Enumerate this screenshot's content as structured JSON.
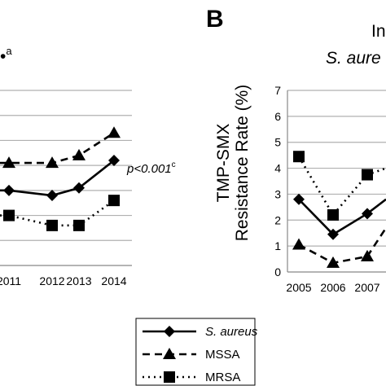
{
  "chart_data": [
    {
      "type": "line",
      "panel": "",
      "x": [
        "2011",
        "2012",
        "2013",
        "2014"
      ],
      "ylim": [
        0,
        7
      ],
      "series": [
        {
          "name": "S. aureus",
          "values": [
            3.0,
            2.8,
            3.1,
            4.2
          ]
        },
        {
          "name": "MSSA",
          "values": [
            4.1,
            4.1,
            4.4,
            5.3
          ]
        },
        {
          "name": "MRSA",
          "values": [
            2.0,
            1.6,
            1.6,
            2.6
          ]
        }
      ],
      "annotations": {
        "top_label": "a",
        "p_text": "p<0.001",
        "p_sup": "c"
      }
    },
    {
      "type": "line",
      "panel": "B",
      "title_line1": "In",
      "title_line2": "S. aure",
      "ylabel_line1": "TMP-SMX",
      "ylabel_line2": "Resistance Rate (%)",
      "x": [
        "2005",
        "2006",
        "2007"
      ],
      "ylim": [
        0,
        7
      ],
      "yticks": [
        "0",
        "1",
        "2",
        "3",
        "4",
        "5",
        "6",
        "7"
      ],
      "series": [
        {
          "name": "S. aureus",
          "values": [
            2.8,
            1.45,
            2.25
          ]
        },
        {
          "name": "MSSA",
          "values": [
            1.05,
            0.35,
            0.6
          ]
        },
        {
          "name": "MRSA",
          "values": [
            4.45,
            2.2,
            3.75
          ]
        }
      ]
    }
  ],
  "legend": {
    "placement": "bottom-center",
    "items": [
      {
        "label": "S. aureus",
        "style": "solid",
        "marker": "diamond",
        "italic": true
      },
      {
        "label": "MSSA",
        "style": "dashed",
        "marker": "triangle",
        "italic": false
      },
      {
        "label": "MRSA",
        "style": "dotted",
        "marker": "square",
        "italic": false
      }
    ]
  }
}
